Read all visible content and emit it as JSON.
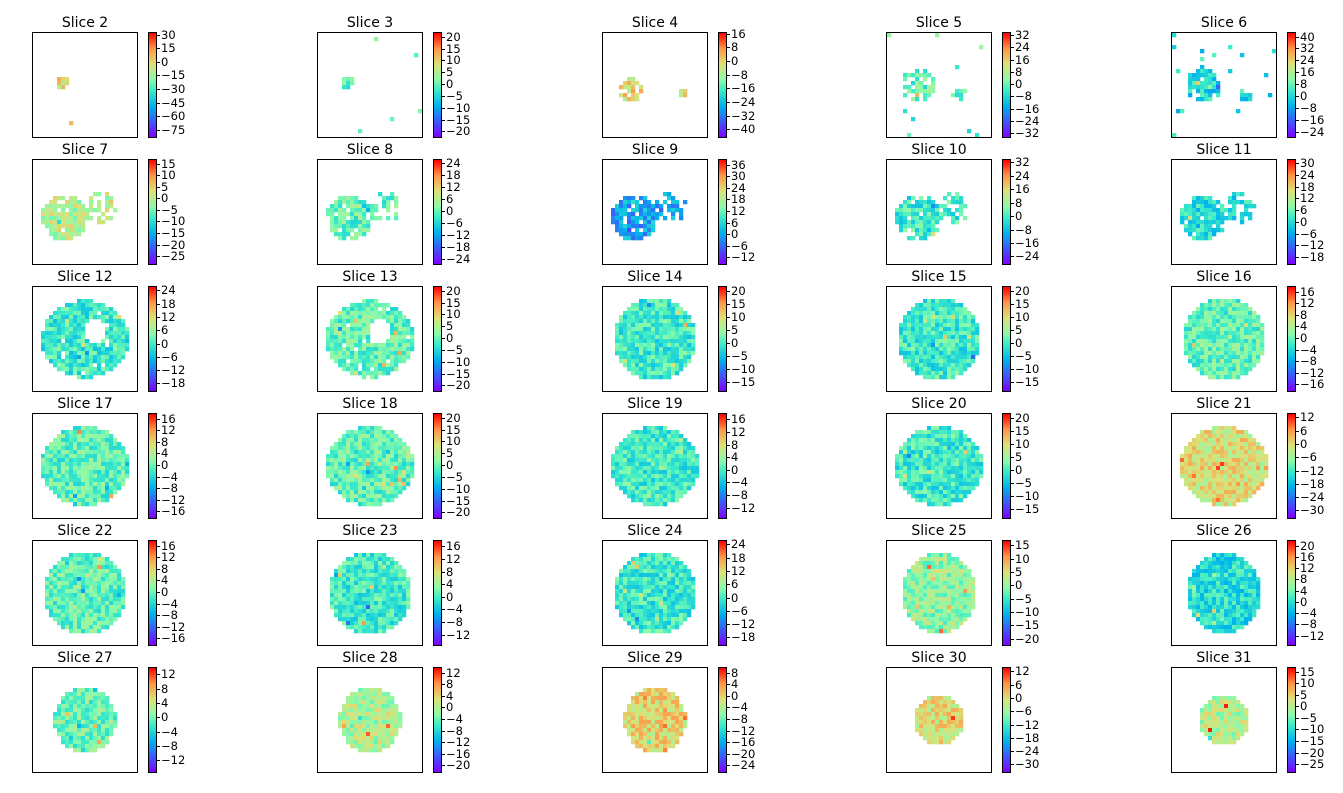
{
  "chart_data": {
    "type": "heatmap",
    "colormap": "rainbow",
    "background": "#ffffff",
    "panels": [
      {
        "title": "Slice 2",
        "colorbar_ticks": [
          "30",
          "15",
          "0",
          "−15",
          "−30",
          "−45",
          "−60",
          "−75"
        ],
        "vmin": -82,
        "vmax": 33,
        "shape": "scattered-small"
      },
      {
        "title": "Slice 3",
        "colorbar_ticks": [
          "20",
          "15",
          "10",
          "5",
          "0",
          "−5",
          "−10",
          "−15",
          "−20"
        ],
        "vmin": -22,
        "vmax": 22,
        "shape": "scattered-small"
      },
      {
        "title": "Slice 4",
        "colorbar_ticks": [
          "16",
          "8",
          "0",
          "−8",
          "−16",
          "−24",
          "−32",
          "−40"
        ],
        "vmin": -44,
        "vmax": 17,
        "shape": "two-blobs"
      },
      {
        "title": "Slice 5",
        "colorbar_ticks": [
          "32",
          "24",
          "16",
          "8",
          "0",
          "−8",
          "−16",
          "−24",
          "−32"
        ],
        "vmin": -34,
        "vmax": 34,
        "shape": "scattered"
      },
      {
        "title": "Slice 6",
        "colorbar_ticks": [
          "40",
          "32",
          "24",
          "16",
          "8",
          "0",
          "−8",
          "−16",
          "−24"
        ],
        "vmin": -27,
        "vmax": 43,
        "shape": "scattered"
      },
      {
        "title": "Slice 7",
        "colorbar_ticks": [
          "15",
          "10",
          "5",
          "0",
          "−5",
          "−10",
          "−15",
          "−20",
          "−25"
        ],
        "vmin": -28,
        "vmax": 17,
        "shape": "partial"
      },
      {
        "title": "Slice 8",
        "colorbar_ticks": [
          "24",
          "18",
          "12",
          "6",
          "0",
          "−6",
          "−12",
          "−18",
          "−24"
        ],
        "vmin": -26,
        "vmax": 26,
        "shape": "partial"
      },
      {
        "title": "Slice 9",
        "colorbar_ticks": [
          "36",
          "30",
          "24",
          "18",
          "12",
          "6",
          "0",
          "−6",
          "−12"
        ],
        "vmin": -15,
        "vmax": 39,
        "shape": "partial"
      },
      {
        "title": "Slice 10",
        "colorbar_ticks": [
          "32",
          "24",
          "16",
          "8",
          "0",
          "−8",
          "−16",
          "−24"
        ],
        "vmin": -28,
        "vmax": 34,
        "shape": "partial"
      },
      {
        "title": "Slice 11",
        "colorbar_ticks": [
          "30",
          "24",
          "18",
          "12",
          "6",
          "0",
          "−6",
          "−12",
          "−18"
        ],
        "vmin": -21,
        "vmax": 32,
        "shape": "partial"
      },
      {
        "title": "Slice 12",
        "colorbar_ticks": [
          "24",
          "18",
          "12",
          "6",
          "0",
          "−6",
          "−12",
          "−18"
        ],
        "vmin": -21,
        "vmax": 26,
        "shape": "ring"
      },
      {
        "title": "Slice 13",
        "colorbar_ticks": [
          "20",
          "15",
          "10",
          "5",
          "0",
          "−5",
          "−10",
          "−15",
          "−20"
        ],
        "vmin": -22,
        "vmax": 22,
        "shape": "ring"
      },
      {
        "title": "Slice 14",
        "colorbar_ticks": [
          "20",
          "15",
          "10",
          "5",
          "0",
          "−5",
          "−10",
          "−15"
        ],
        "vmin": -18,
        "vmax": 22,
        "shape": "oval"
      },
      {
        "title": "Slice 15",
        "colorbar_ticks": [
          "20",
          "15",
          "10",
          "5",
          "0",
          "−5",
          "−10",
          "−15"
        ],
        "vmin": -18,
        "vmax": 22,
        "shape": "oval"
      },
      {
        "title": "Slice 16",
        "colorbar_ticks": [
          "16",
          "12",
          "8",
          "4",
          "0",
          "−4",
          "−8",
          "−12",
          "−16"
        ],
        "vmin": -18,
        "vmax": 18,
        "shape": "oval"
      },
      {
        "title": "Slice 17",
        "colorbar_ticks": [
          "16",
          "12",
          "8",
          "4",
          "0",
          "−4",
          "−8",
          "−12",
          "−16"
        ],
        "vmin": -18,
        "vmax": 18,
        "shape": "oval-wide"
      },
      {
        "title": "Slice 18",
        "colorbar_ticks": [
          "20",
          "15",
          "10",
          "5",
          "0",
          "−5",
          "−10",
          "−15",
          "−20"
        ],
        "vmin": -22,
        "vmax": 22,
        "shape": "oval-wide"
      },
      {
        "title": "Slice 19",
        "colorbar_ticks": [
          "16",
          "12",
          "8",
          "4",
          "0",
          "−4",
          "−8",
          "−12"
        ],
        "vmin": -15,
        "vmax": 18,
        "shape": "oval-wide"
      },
      {
        "title": "Slice 20",
        "colorbar_ticks": [
          "20",
          "15",
          "10",
          "5",
          "0",
          "−5",
          "−10",
          "−15"
        ],
        "vmin": -18,
        "vmax": 22,
        "shape": "oval-wide"
      },
      {
        "title": "Slice 21",
        "colorbar_ticks": [
          "12",
          "6",
          "0",
          "−6",
          "−12",
          "−18",
          "−24",
          "−30"
        ],
        "vmin": -33,
        "vmax": 14,
        "shape": "oval-wide"
      },
      {
        "title": "Slice 22",
        "colorbar_ticks": [
          "16",
          "12",
          "8",
          "4",
          "0",
          "−4",
          "−8",
          "−12",
          "−16"
        ],
        "vmin": -18,
        "vmax": 18,
        "shape": "oval"
      },
      {
        "title": "Slice 23",
        "colorbar_ticks": [
          "16",
          "12",
          "8",
          "4",
          "0",
          "−4",
          "−8",
          "−12"
        ],
        "vmin": -15,
        "vmax": 18,
        "shape": "oval"
      },
      {
        "title": "Slice 24",
        "colorbar_ticks": [
          "24",
          "18",
          "12",
          "6",
          "0",
          "−6",
          "−12",
          "−18"
        ],
        "vmin": -21,
        "vmax": 26,
        "shape": "oval"
      },
      {
        "title": "Slice 25",
        "colorbar_ticks": [
          "15",
          "10",
          "5",
          "0",
          "−5",
          "−10",
          "−15",
          "−20"
        ],
        "vmin": -22,
        "vmax": 17,
        "shape": "circle"
      },
      {
        "title": "Slice 26",
        "colorbar_ticks": [
          "20",
          "16",
          "12",
          "8",
          "4",
          "0",
          "−4",
          "−8",
          "−12"
        ],
        "vmin": -15,
        "vmax": 22,
        "shape": "circle"
      },
      {
        "title": "Slice 27",
        "colorbar_ticks": [
          "12",
          "8",
          "4",
          "0",
          "−4",
          "−8",
          "−12"
        ],
        "vmin": -15,
        "vmax": 14,
        "shape": "circle-small"
      },
      {
        "title": "Slice 28",
        "colorbar_ticks": [
          "12",
          "8",
          "4",
          "0",
          "−4",
          "−8",
          "−12",
          "−16",
          "−20"
        ],
        "vmin": -22,
        "vmax": 14,
        "shape": "circle-small"
      },
      {
        "title": "Slice 29",
        "colorbar_ticks": [
          "8",
          "4",
          "0",
          "−4",
          "−8",
          "−12",
          "−16",
          "−20",
          "−24"
        ],
        "vmin": -26,
        "vmax": 10,
        "shape": "circle-small"
      },
      {
        "title": "Slice 30",
        "colorbar_ticks": [
          "12",
          "6",
          "0",
          "−6",
          "−12",
          "−18",
          "−24",
          "−30"
        ],
        "vmin": -33,
        "vmax": 14,
        "shape": "circle-tiny"
      },
      {
        "title": "Slice 31",
        "colorbar_ticks": [
          "15",
          "10",
          "5",
          "0",
          "−5",
          "−10",
          "−15",
          "−20",
          "−25"
        ],
        "vmin": -28,
        "vmax": 17,
        "shape": "circle-tiny"
      }
    ]
  }
}
